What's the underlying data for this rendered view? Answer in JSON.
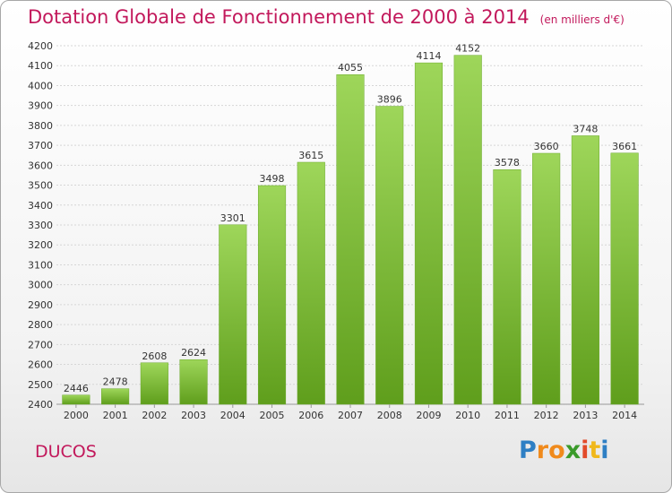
{
  "chart_data": {
    "type": "bar",
    "title": "Dotation Globale de Fonctionnement de 2000 à 2014",
    "unit": "(en milliers d'€)",
    "categories": [
      "2000",
      "2001",
      "2002",
      "2003",
      "2004",
      "2005",
      "2006",
      "2007",
      "2008",
      "2009",
      "2010",
      "2011",
      "2012",
      "2013",
      "2014"
    ],
    "values": [
      2446,
      2478,
      2608,
      2624,
      3301,
      3498,
      3615,
      4055,
      3896,
      4114,
      4152,
      3578,
      3660,
      3748,
      3661
    ],
    "ylim": [
      2400,
      4200
    ],
    "ytick_step": 100,
    "grid": true,
    "bar_color": "#7cbf2f"
  },
  "commune": "DUCOS",
  "logo": {
    "letters": [
      "P",
      "r",
      "o",
      "x",
      "i",
      "t",
      "i"
    ],
    "colors": [
      "#2e7fc4",
      "#f08a1c",
      "#f08a1c",
      "#3a9a2a",
      "#e24a2a",
      "#f0b81c",
      "#2e7fc4"
    ]
  }
}
